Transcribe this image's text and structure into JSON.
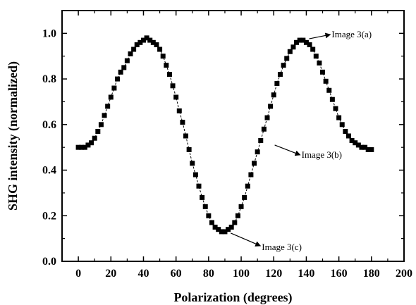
{
  "chart_data": {
    "type": "scatter",
    "title": "",
    "xlabel": "Polarization (degrees)",
    "ylabel": "SHG intensity (normalized)",
    "xlim": [
      -10,
      200
    ],
    "ylim": [
      0.0,
      1.1
    ],
    "xticks": [
      "0",
      "20",
      "40",
      "60",
      "80",
      "100",
      "120",
      "140",
      "160",
      "180",
      "200"
    ],
    "yticks": [
      "0.0",
      "0.2",
      "0.4",
      "0.6",
      "0.8",
      "1.0"
    ],
    "grid": false,
    "marker": "square",
    "marker_color": "#000000",
    "line_style": "dashed",
    "x": [
      0,
      2,
      4,
      6,
      8,
      10,
      12,
      14,
      16,
      18,
      20,
      22,
      24,
      26,
      28,
      30,
      32,
      34,
      36,
      38,
      40,
      42,
      44,
      46,
      48,
      50,
      52,
      54,
      56,
      58,
      60,
      62,
      64,
      66,
      68,
      70,
      72,
      74,
      76,
      78,
      80,
      82,
      84,
      86,
      88,
      90,
      92,
      94,
      96,
      98,
      100,
      102,
      104,
      106,
      108,
      110,
      112,
      114,
      116,
      118,
      120,
      122,
      124,
      126,
      128,
      130,
      132,
      134,
      136,
      138,
      140,
      142,
      144,
      146,
      148,
      150,
      152,
      154,
      156,
      158,
      160,
      162,
      164,
      166,
      168,
      170,
      172,
      174,
      176,
      178,
      180
    ],
    "y": [
      0.5,
      0.5,
      0.5,
      0.51,
      0.52,
      0.54,
      0.57,
      0.6,
      0.64,
      0.68,
      0.72,
      0.76,
      0.8,
      0.83,
      0.85,
      0.88,
      0.91,
      0.93,
      0.95,
      0.96,
      0.97,
      0.98,
      0.97,
      0.96,
      0.95,
      0.93,
      0.9,
      0.86,
      0.82,
      0.77,
      0.72,
      0.66,
      0.61,
      0.55,
      0.49,
      0.43,
      0.38,
      0.33,
      0.28,
      0.24,
      0.2,
      0.17,
      0.15,
      0.14,
      0.13,
      0.13,
      0.14,
      0.15,
      0.17,
      0.2,
      0.24,
      0.28,
      0.33,
      0.38,
      0.43,
      0.48,
      0.53,
      0.58,
      0.63,
      0.68,
      0.73,
      0.78,
      0.82,
      0.86,
      0.89,
      0.92,
      0.94,
      0.96,
      0.97,
      0.97,
      0.96,
      0.95,
      0.93,
      0.9,
      0.87,
      0.83,
      0.79,
      0.75,
      0.71,
      0.67,
      0.63,
      0.6,
      0.57,
      0.55,
      0.53,
      0.52,
      0.51,
      0.5,
      0.5,
      0.49,
      0.49
    ],
    "annotations": [
      {
        "text": "Image  3(a)",
        "x": 140,
        "y": 0.97
      },
      {
        "text": "Image  3(b)",
        "x": 118,
        "y": 0.51
      },
      {
        "text": "Image  3(c)",
        "x": 91,
        "y": 0.13
      }
    ]
  }
}
